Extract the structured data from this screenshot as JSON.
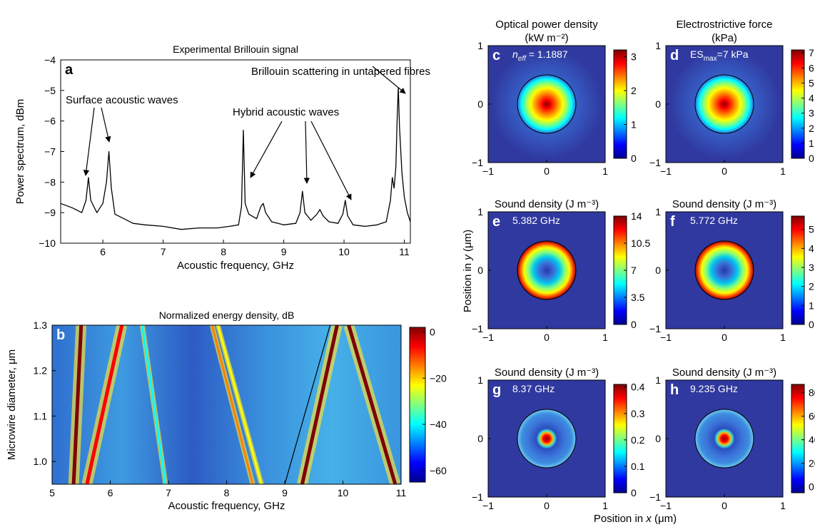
{
  "figure": {
    "shared_ylabel_prefix": "Position in ",
    "shared_ylabel_var": "y",
    "shared_ylabel_suffix": " (μm)",
    "shared_xlabel_prefix": "Position in ",
    "shared_xlabel_var": "x",
    "shared_xlabel_suffix": " (μm)"
  },
  "chart_data": [
    {
      "id": "a",
      "type": "line",
      "panel_letter": "a",
      "title": "Experimental Brillouin signal",
      "xlabel": "Acoustic frequency, GHz",
      "ylabel": "Power spectrum, dBm",
      "xlim": [
        5.3,
        11.1
      ],
      "ylim": [
        -10,
        -4
      ],
      "xticks": [
        6,
        7,
        8,
        9,
        10,
        11
      ],
      "yticks": [
        -10,
        -9,
        -8,
        -7,
        -6,
        -5,
        -4
      ],
      "grid": false,
      "series": [
        {
          "color": "#000000",
          "x": [
            5.3,
            5.5,
            5.65,
            5.72,
            5.76,
            5.8,
            5.9,
            6.0,
            6.06,
            6.1,
            6.14,
            6.2,
            6.35,
            6.5,
            6.7,
            7.0,
            7.3,
            7.6,
            7.9,
            8.1,
            8.25,
            8.3,
            8.33,
            8.36,
            8.42,
            8.55,
            8.62,
            8.66,
            8.7,
            8.8,
            9.0,
            9.2,
            9.27,
            9.31,
            9.35,
            9.45,
            9.55,
            9.6,
            9.65,
            9.75,
            9.9,
            9.98,
            10.02,
            10.06,
            10.15,
            10.35,
            10.55,
            10.7,
            10.77,
            10.8,
            10.83,
            10.86,
            10.88,
            10.9,
            10.92,
            10.96,
            11.0,
            11.05,
            11.1
          ],
          "y": [
            -8.7,
            -8.85,
            -9.0,
            -8.6,
            -7.85,
            -8.6,
            -9.0,
            -8.7,
            -8.0,
            -7.0,
            -8.2,
            -9.05,
            -9.2,
            -9.35,
            -9.4,
            -9.45,
            -9.55,
            -9.5,
            -9.5,
            -9.45,
            -9.4,
            -8.8,
            -6.3,
            -8.7,
            -9.05,
            -9.2,
            -8.8,
            -8.7,
            -9.0,
            -9.3,
            -9.4,
            -9.35,
            -9.0,
            -8.3,
            -9.0,
            -9.25,
            -9.05,
            -8.9,
            -9.1,
            -9.3,
            -9.35,
            -9.05,
            -8.6,
            -9.1,
            -9.4,
            -9.45,
            -9.4,
            -9.3,
            -8.6,
            -7.85,
            -8.2,
            -7.5,
            -6.0,
            -4.9,
            -6.2,
            -7.7,
            -8.5,
            -9.0,
            -9.3
          ]
        }
      ],
      "annotations": [
        {
          "text": "Surface acoustic waves"
        },
        {
          "text": "Hybrid acoustic waves"
        },
        {
          "text": "Brillouin scattering in untapered fibres"
        }
      ]
    },
    {
      "id": "b",
      "type": "heatmap",
      "panel_letter": "b",
      "title": "Normalized energy density, dB",
      "xlabel": "Acoustic frequency, GHz",
      "ylabel": "Microwire diameter, μm",
      "xlim": [
        5,
        11
      ],
      "ylim": [
        0.95,
        1.3
      ],
      "xticks": [
        5,
        6,
        7,
        8,
        9,
        10,
        11
      ],
      "yticks": [
        1.0,
        1.1,
        1.2,
        1.3
      ],
      "ytick_labels": [
        "1.0",
        "1.1",
        "1.2",
        "1.3"
      ],
      "colorbar": {
        "ticks": [
          0,
          -20,
          -40,
          -60
        ],
        "range": [
          -65,
          2
        ]
      },
      "curves": [
        {
          "level_db": 0,
          "x": [
            5.37,
            5.5
          ],
          "y": [
            0.95,
            1.3
          ]
        },
        {
          "level_db": -5,
          "x": [
            5.6,
            6.2
          ],
          "y": [
            0.95,
            1.3
          ]
        },
        {
          "level_db": -40,
          "x": [
            6.95,
            6.55
          ],
          "y": [
            0.95,
            1.3
          ]
        },
        {
          "level_db": -15,
          "x": [
            8.45,
            7.75
          ],
          "y": [
            0.95,
            1.3
          ]
        },
        {
          "level_db": -20,
          "x": [
            8.6,
            7.85
          ],
          "y": [
            0.95,
            1.3
          ]
        },
        {
          "level_db": 0,
          "x": [
            9.3,
            9.9
          ],
          "y": [
            0.95,
            1.3
          ]
        },
        {
          "level_db": 0,
          "x": [
            10.9,
            10.1
          ],
          "y": [
            0.95,
            1.3
          ]
        }
      ],
      "reference_line": {
        "x": [
          9.0,
          9.78
        ],
        "y": [
          0.95,
          1.3
        ],
        "color": "#000000"
      }
    },
    {
      "id": "c",
      "type": "heatmap",
      "panel_letter": "c",
      "title": [
        "Optical power density",
        "(kW m⁻²)"
      ],
      "label_main": "n",
      "label_sub": "eff",
      "label_rest": " = 1.1887",
      "profile": "center",
      "xlim": [
        -1,
        1
      ],
      "ylim": [
        -1,
        1
      ],
      "xticks": [
        -1,
        0,
        1
      ],
      "yticks": [
        -1,
        0,
        1
      ],
      "colorbar": {
        "ticks": [
          "0",
          "1",
          "2",
          "3"
        ],
        "range": [
          0,
          3.2
        ]
      }
    },
    {
      "id": "d",
      "type": "heatmap",
      "panel_letter": "d",
      "title": [
        "Electrostrictive force",
        "(kPa)"
      ],
      "label_main": "ES",
      "label_sub": "max",
      "label_rest": "=7 kPa",
      "profile": "center",
      "xlim": [
        -1,
        1
      ],
      "ylim": [
        -1,
        1
      ],
      "xticks": [
        -1,
        0,
        1
      ],
      "yticks": [
        -1,
        0,
        1
      ],
      "colorbar": {
        "ticks": [
          "0",
          "1",
          "2",
          "3",
          "4",
          "5",
          "6",
          "7"
        ],
        "range": [
          0,
          7.2
        ]
      }
    },
    {
      "id": "e",
      "type": "heatmap",
      "panel_letter": "e",
      "title": [
        "Sound density (J m⁻³)"
      ],
      "label_main": "5.382 GHz",
      "profile": "ring",
      "xlim": [
        -1,
        1
      ],
      "ylim": [
        -1,
        1
      ],
      "xticks": [
        -1,
        0,
        1
      ],
      "yticks": [
        -1,
        0,
        1
      ],
      "colorbar": {
        "ticks": [
          "0",
          "3.5",
          "7",
          "10.5",
          "14"
        ],
        "range": [
          0,
          14
        ]
      }
    },
    {
      "id": "f",
      "type": "heatmap",
      "panel_letter": "f",
      "title": [
        "Sound density (J m⁻³)"
      ],
      "label_main": "5.772 GHz",
      "profile": "ring",
      "xlim": [
        -1,
        1
      ],
      "ylim": [
        -1,
        1
      ],
      "xticks": [
        -1,
        0,
        1
      ],
      "yticks": [
        -1,
        0,
        1
      ],
      "colorbar": {
        "ticks": [
          "0",
          "1",
          "2",
          "3",
          "4",
          "5"
        ],
        "range": [
          0,
          5.7
        ]
      }
    },
    {
      "id": "g",
      "type": "heatmap",
      "panel_letter": "g",
      "title": [
        "Sound density (J m⁻³)"
      ],
      "label_main": "8.37 GHz",
      "profile": "small",
      "xlim": [
        -1,
        1
      ],
      "ylim": [
        -1,
        1
      ],
      "xticks": [
        -1,
        0,
        1
      ],
      "yticks": [
        -1,
        0,
        1
      ],
      "colorbar": {
        "ticks": [
          "0",
          "0.1",
          "0.2",
          "0.3",
          "0.4"
        ],
        "range": [
          0,
          0.41
        ]
      }
    },
    {
      "id": "h",
      "type": "heatmap",
      "panel_letter": "h",
      "title": [
        "Sound density (J m⁻³)"
      ],
      "label_main": "9.235 GHz",
      "profile": "small",
      "xlim": [
        -1,
        1
      ],
      "ylim": [
        -1,
        1
      ],
      "xticks": [
        -1,
        0,
        1
      ],
      "yticks": [
        -1,
        0,
        1
      ],
      "colorbar": {
        "ticks": [
          "0",
          "20",
          "40",
          "60",
          "80"
        ],
        "range": [
          -5,
          87
        ]
      }
    }
  ]
}
